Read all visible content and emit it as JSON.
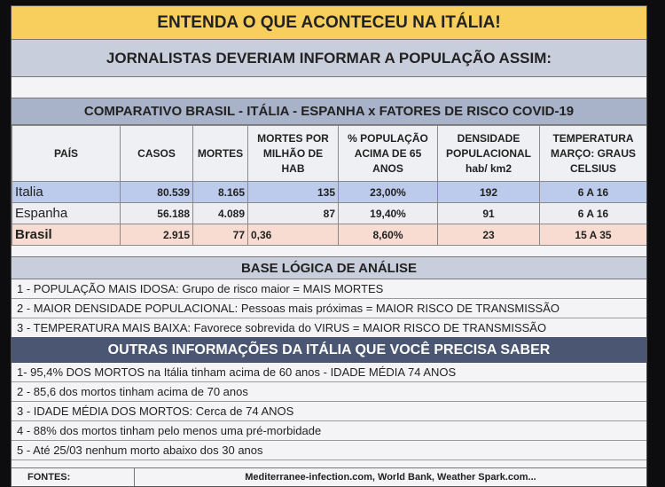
{
  "title": "ENTENDA O QUE ACONTECEU NA ITÁLIA!",
  "subtitle": "JORNALISTAS DEVERIAM INFORMAR A POPULAÇÃO ASSIM:",
  "comparativo": "COMPARATIVO BRASIL - ITÁLIA - ESPANHA x FATORES DE RISCO COVID-19",
  "table": {
    "headers": [
      "PAÍS",
      "CASOS",
      "MORTES",
      "MORTES POR MILHÃO DE HAB",
      "% POPULAÇÃO ACIMA DE 65 ANOS",
      "DENSIDADE POPULACIONAL hab/ km2",
      "TEMPERATURA MARÇO: GRAUS CELSIUS"
    ],
    "rows": [
      [
        "Italia",
        "80.539",
        "8.165",
        "135",
        "23,00%",
        "192",
        "6 A 16"
      ],
      [
        "Espanha",
        "56.188",
        "4.089",
        "87",
        "19,40%",
        "91",
        "6 A 16"
      ],
      [
        "Brasil",
        "2.915",
        "77",
        "0,36",
        "8,60%",
        "23",
        "15 A 35"
      ]
    ]
  },
  "base": {
    "heading": "BASE LÓGICA DE ANÁLISE",
    "items": [
      "1 - POPULAÇÃO MAIS IDOSA: Grupo de risco maior = MAIS MORTES",
      "2 - MAIOR DENSIDADE POPULACIONAL: Pessoas mais próximas = MAIOR RISCO DE TRANSMISSÃO",
      "3 - TEMPERATURA MAIS BAIXA: Favorece sobrevida do VIRUS = MAIOR RISCO DE TRANSMISSÃO"
    ]
  },
  "outras": {
    "heading": "OUTRAS INFORMAÇÕES DA ITÁLIA QUE VOCÊ PRECISA SABER",
    "items": [
      "1- 95,4% DOS MORTOS na Itália tinham acima de 60 anos - IDADE MÉDIA 74 ANOS",
      "2 - 85,6 dos mortos tinham acima de 70 anos",
      "3 - IDADE MÉDIA DOS MORTOS: Cerca de 74 ANOS",
      "4 - 88% dos mortos tinham pelo menos uma pré-morbidade",
      "5 - Até 25/03 nenhum morto abaixo dos 30 anos"
    ]
  },
  "fontes": {
    "label": "FONTES:",
    "value": "Mediterranee-infection.com, World Bank, Weather Spark.com..."
  }
}
